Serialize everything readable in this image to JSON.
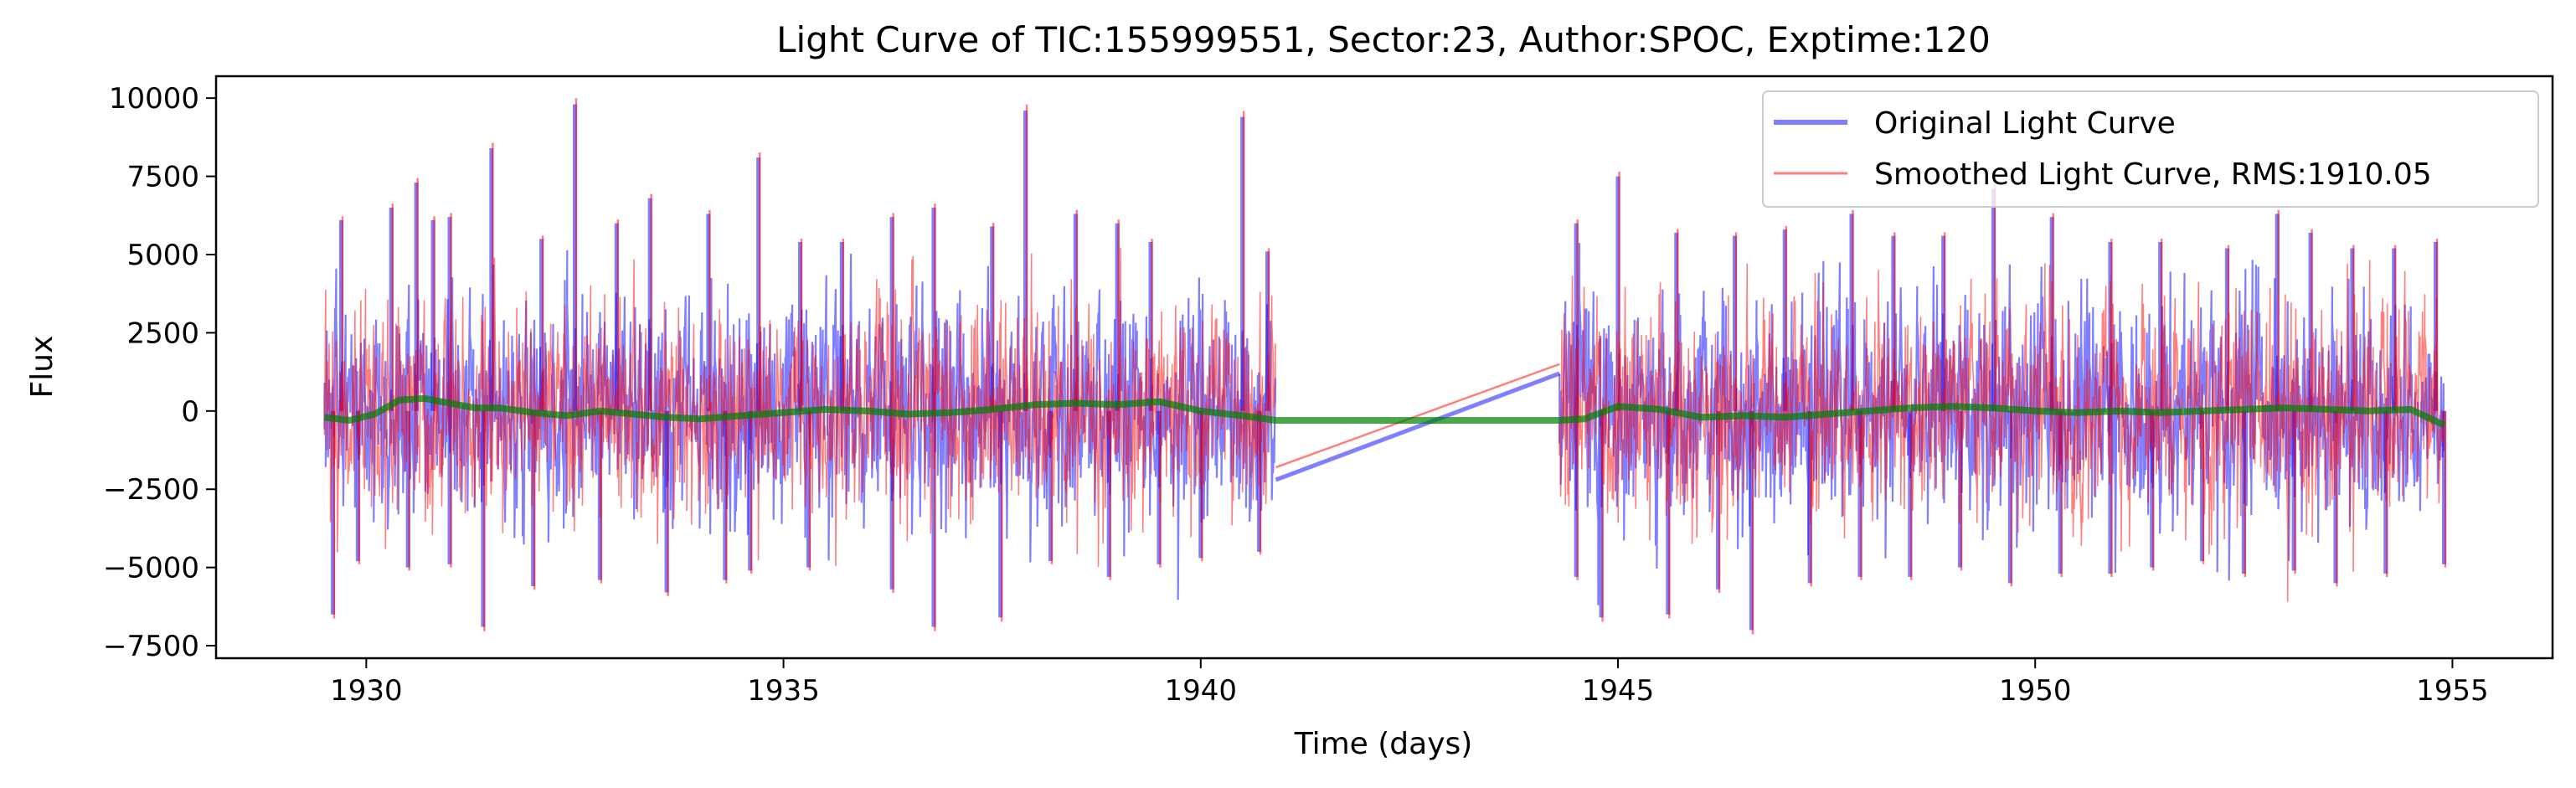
{
  "chart_data": {
    "type": "line",
    "title": "Light Curve of TIC:155999551, Sector:23, Author:SPOC, Exptime:120",
    "xlabel": "Time (days)",
    "ylabel": "Flux",
    "xlim": [
      1928.2,
      1956.2
    ],
    "ylim": [
      -7900,
      10700
    ],
    "xticks": [
      1930,
      1935,
      1940,
      1945,
      1950,
      1955
    ],
    "yticks": [
      -7500,
      -5000,
      -2500,
      0,
      2500,
      5000,
      7500,
      10000
    ],
    "xtick_labels": [
      "1930",
      "1935",
      "1940",
      "1945",
      "1950",
      "1955"
    ],
    "ytick_labels": [
      "−7500",
      "−5000",
      "−2500",
      "0",
      "2500",
      "5000",
      "7500",
      "10000"
    ],
    "grid": false,
    "legend_position": "top-right",
    "series": [
      {
        "name": "Original Light Curve",
        "color": "#0000ff",
        "opacity": 0.5,
        "segments": [
          {
            "x_start": 1929.5,
            "x_end": 1940.9
          },
          {
            "x_start": 1944.3,
            "x_end": 1954.9
          }
        ],
        "typical_band": [
          -3600,
          3600
        ],
        "spikes_up": [
          [
            1929.7,
            6100
          ],
          [
            1930.3,
            6500
          ],
          [
            1930.6,
            7300
          ],
          [
            1930.8,
            6100
          ],
          [
            1931.0,
            6200
          ],
          [
            1931.5,
            8400
          ],
          [
            1932.1,
            5500
          ],
          [
            1932.5,
            9800
          ],
          [
            1933.0,
            6000
          ],
          [
            1933.4,
            6800
          ],
          [
            1934.1,
            6300
          ],
          [
            1934.7,
            8100
          ],
          [
            1935.2,
            5400
          ],
          [
            1935.7,
            5400
          ],
          [
            1936.3,
            6200
          ],
          [
            1936.8,
            6500
          ],
          [
            1937.5,
            5900
          ],
          [
            1937.9,
            9600
          ],
          [
            1938.5,
            6300
          ],
          [
            1939.0,
            6000
          ],
          [
            1939.4,
            5400
          ],
          [
            1940.5,
            9400
          ],
          [
            1940.8,
            5100
          ],
          [
            1944.5,
            6000
          ],
          [
            1945.0,
            7500
          ],
          [
            1945.7,
            5700
          ],
          [
            1946.4,
            5600
          ],
          [
            1947.0,
            5800
          ],
          [
            1947.8,
            6300
          ],
          [
            1948.3,
            5600
          ],
          [
            1948.9,
            5600
          ],
          [
            1949.5,
            7100
          ],
          [
            1950.2,
            6200
          ],
          [
            1950.9,
            5400
          ],
          [
            1951.5,
            5400
          ],
          [
            1952.3,
            5200
          ],
          [
            1952.9,
            6300
          ],
          [
            1953.3,
            5700
          ],
          [
            1953.8,
            5200
          ],
          [
            1954.3,
            5200
          ],
          [
            1954.8,
            5400
          ]
        ],
        "spikes_down": [
          [
            1929.6,
            -6500
          ],
          [
            1929.9,
            -4800
          ],
          [
            1930.5,
            -5000
          ],
          [
            1931.0,
            -4900
          ],
          [
            1931.4,
            -6900
          ],
          [
            1932.0,
            -5600
          ],
          [
            1932.8,
            -5400
          ],
          [
            1933.6,
            -5800
          ],
          [
            1934.3,
            -5400
          ],
          [
            1934.6,
            -5100
          ],
          [
            1935.3,
            -5000
          ],
          [
            1936.3,
            -5700
          ],
          [
            1936.8,
            -6900
          ],
          [
            1937.6,
            -6600
          ],
          [
            1938.2,
            -4800
          ],
          [
            1938.9,
            -5300
          ],
          [
            1939.5,
            -4900
          ],
          [
            1940.0,
            -4700
          ],
          [
            1940.7,
            -4500
          ],
          [
            1944.5,
            -5300
          ],
          [
            1944.8,
            -6600
          ],
          [
            1945.6,
            -6500
          ],
          [
            1946.2,
            -5700
          ],
          [
            1946.6,
            -7000
          ],
          [
            1947.3,
            -5500
          ],
          [
            1947.9,
            -5300
          ],
          [
            1948.5,
            -5300
          ],
          [
            1949.1,
            -5000
          ],
          [
            1949.7,
            -5500
          ],
          [
            1950.3,
            -5200
          ],
          [
            1950.9,
            -5200
          ],
          [
            1951.4,
            -5000
          ],
          [
            1952.0,
            -4800
          ],
          [
            1952.5,
            -5200
          ],
          [
            1953.1,
            -5100
          ],
          [
            1953.6,
            -5500
          ],
          [
            1954.2,
            -5200
          ],
          [
            1954.9,
            -4900
          ]
        ],
        "gap_line": [
          [
            1940.9,
            -2200
          ],
          [
            1944.3,
            1200
          ]
        ]
      },
      {
        "name": "Smoothed Light Curve, RMS:1910.05",
        "color": "#ff0000",
        "opacity": 0.5,
        "segments": [
          {
            "x_start": 1929.5,
            "x_end": 1940.9
          },
          {
            "x_start": 1944.3,
            "x_end": 1954.9
          }
        ],
        "typical_band": [
          -3500,
          3500
        ],
        "gap_line": [
          [
            1940.9,
            -1800
          ],
          [
            1944.3,
            1500
          ]
        ]
      },
      {
        "color": "#008000",
        "opacity": 0.7,
        "x": [
          1929.5,
          1929.8,
          1930.1,
          1930.4,
          1930.7,
          1931.0,
          1931.3,
          1931.6,
          1932.0,
          1932.4,
          1932.8,
          1933.2,
          1933.6,
          1934.0,
          1934.5,
          1935.0,
          1935.5,
          1936.0,
          1936.5,
          1937.0,
          1937.5,
          1938.0,
          1938.5,
          1939.0,
          1939.5,
          1940.0,
          1940.5,
          1940.9,
          1944.3,
          1944.6,
          1945.0,
          1945.5,
          1946.0,
          1946.5,
          1947.0,
          1947.5,
          1948.0,
          1948.5,
          1949.0,
          1949.5,
          1950.0,
          1950.5,
          1951.0,
          1951.5,
          1952.0,
          1952.5,
          1953.0,
          1953.5,
          1954.0,
          1954.5,
          1954.9
        ],
        "y": [
          -200,
          -300,
          -100,
          350,
          400,
          250,
          100,
          100,
          -50,
          -150,
          0,
          -100,
          -200,
          -250,
          -150,
          -50,
          50,
          0,
          -100,
          -50,
          50,
          200,
          250,
          200,
          300,
          0,
          -150,
          -300,
          -300,
          -250,
          150,
          50,
          -200,
          -150,
          -200,
          -100,
          0,
          100,
          150,
          100,
          0,
          -50,
          0,
          -50,
          0,
          50,
          100,
          50,
          0,
          50,
          -450
        ]
      }
    ]
  }
}
